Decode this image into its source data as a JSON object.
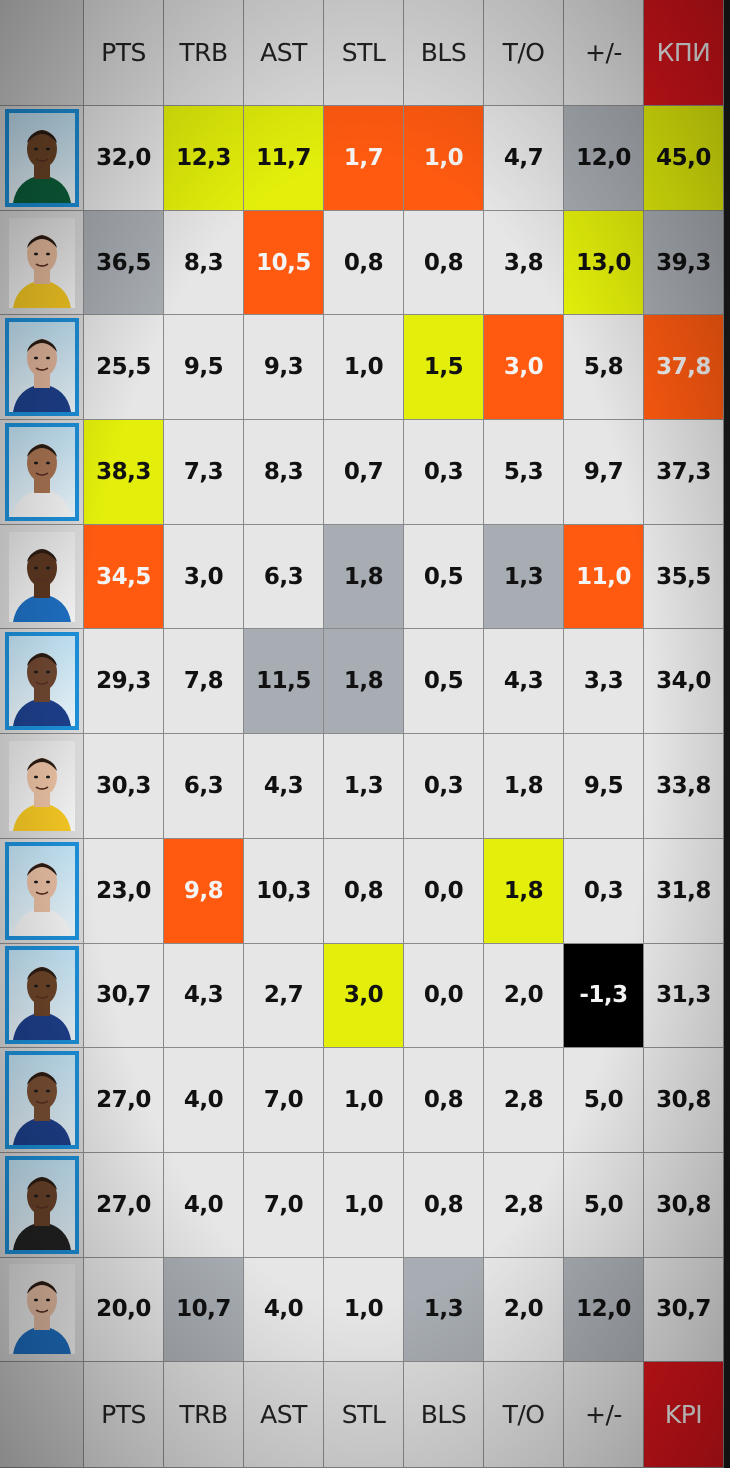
{
  "header_labels": [
    "PTS",
    "TRB",
    "AST",
    "STL",
    "BLS",
    "T/O",
    "+/-",
    "КПИ"
  ],
  "footer_labels": [
    "PTS",
    "TRB",
    "AST",
    "STL",
    "BLS",
    "T/O",
    "+/-",
    "KPI"
  ],
  "colors": {
    "yellow": "#e3ef0a",
    "orange": "#ff5a10",
    "gray": "#a8adb3",
    "black": "#000000",
    "kpi_red": "#d8141a",
    "photo_border_blue": "#1c8fd8"
  },
  "rows": [
    {
      "player": "player-1",
      "photo_style": "blue",
      "jersey": "#0b5f3a",
      "skin": "#6b4326",
      "values": [
        "32,0",
        "12,3",
        "11,7",
        "1,7",
        "1,0",
        "4,7",
        "12,0",
        "45,0"
      ],
      "highlights": [
        "",
        "yellow",
        "yellow",
        "orange",
        "orange",
        "",
        "gray",
        "yellow"
      ]
    },
    {
      "player": "player-2",
      "photo_style": "plain",
      "jersey": "#f3c623",
      "skin": "#e3b89a",
      "values": [
        "36,5",
        "8,3",
        "10,5",
        "0,8",
        "0,8",
        "3,8",
        "13,0",
        "39,3"
      ],
      "highlights": [
        "gray",
        "",
        "orange",
        "",
        "",
        "",
        "yellow",
        "gray"
      ]
    },
    {
      "player": "player-3",
      "photo_style": "blue",
      "jersey": "#1d3f8a",
      "skin": "#e0b49a",
      "values": [
        "25,5",
        "9,5",
        "9,3",
        "1,0",
        "1,5",
        "3,0",
        "5,8",
        "37,8"
      ],
      "highlights": [
        "",
        "",
        "",
        "",
        "yellow",
        "orange",
        "",
        "orange"
      ]
    },
    {
      "player": "player-4",
      "photo_style": "blue",
      "jersey": "#f1f1f1",
      "skin": "#a77251",
      "values": [
        "38,3",
        "7,3",
        "8,3",
        "0,7",
        "0,3",
        "5,3",
        "9,7",
        "37,3"
      ],
      "highlights": [
        "yellow",
        "",
        "",
        "",
        "",
        "",
        "",
        ""
      ]
    },
    {
      "player": "player-5",
      "photo_style": "plain",
      "jersey": "#1e6ec0",
      "skin": "#5a3620",
      "values": [
        "34,5",
        "3,0",
        "6,3",
        "1,8",
        "0,5",
        "1,3",
        "11,0",
        "35,5"
      ],
      "highlights": [
        "orange",
        "",
        "",
        "gray",
        "",
        "gray",
        "orange",
        ""
      ]
    },
    {
      "player": "player-6",
      "photo_style": "blue",
      "jersey": "#1d3f8a",
      "skin": "#6d4630",
      "values": [
        "29,3",
        "7,8",
        "11,5",
        "1,8",
        "0,5",
        "4,3",
        "3,3",
        "34,0"
      ],
      "highlights": [
        "",
        "",
        "gray",
        "gray",
        "",
        "",
        "",
        ""
      ]
    },
    {
      "player": "player-7",
      "photo_style": "plain",
      "jersey": "#f3c623",
      "skin": "#e7bea1",
      "values": [
        "30,3",
        "6,3",
        "4,3",
        "1,3",
        "0,3",
        "1,8",
        "9,5",
        "33,8"
      ],
      "highlights": [
        "",
        "",
        "",
        "",
        "",
        "",
        "",
        ""
      ]
    },
    {
      "player": "player-8",
      "photo_style": "blue",
      "jersey": "#f1f1f1",
      "skin": "#e4bba0",
      "values": [
        "23,0",
        "9,8",
        "10,3",
        "0,8",
        "0,0",
        "1,8",
        "0,3",
        "31,8"
      ],
      "highlights": [
        "",
        "orange",
        "",
        "",
        "",
        "yellow",
        "",
        ""
      ]
    },
    {
      "player": "player-9",
      "photo_style": "blue",
      "jersey": "#1d3f8a",
      "skin": "#6b4428",
      "values": [
        "30,7",
        "4,3",
        "2,7",
        "3,0",
        "0,0",
        "2,0",
        "-1,3",
        "31,3"
      ],
      "highlights": [
        "",
        "",
        "",
        "yellow",
        "",
        "",
        "black",
        ""
      ]
    },
    {
      "player": "player-10",
      "photo_style": "blue",
      "jersey": "#1d3f8a",
      "skin": "#7a4f33",
      "values": [
        "27,0",
        "4,0",
        "7,0",
        "1,0",
        "0,8",
        "2,8",
        "5,0",
        "30,8"
      ],
      "highlights": [
        "",
        "",
        "",
        "",
        "",
        "",
        "",
        ""
      ]
    },
    {
      "player": "player-11",
      "photo_style": "blue",
      "jersey": "#222222",
      "skin": "#6a4229",
      "values": [
        "27,0",
        "4,0",
        "7,0",
        "1,0",
        "0,8",
        "2,8",
        "5,0",
        "30,8"
      ],
      "highlights": [
        "",
        "",
        "",
        "",
        "",
        "",
        "",
        ""
      ]
    },
    {
      "player": "player-12",
      "photo_style": "plain",
      "jersey": "#1e6ec0",
      "skin": "#e4bca2",
      "values": [
        "20,0",
        "10,7",
        "4,0",
        "1,0",
        "1,3",
        "2,0",
        "12,0",
        "30,7"
      ],
      "highlights": [
        "",
        "gray",
        "",
        "",
        "gray",
        "",
        "gray",
        ""
      ]
    }
  ]
}
